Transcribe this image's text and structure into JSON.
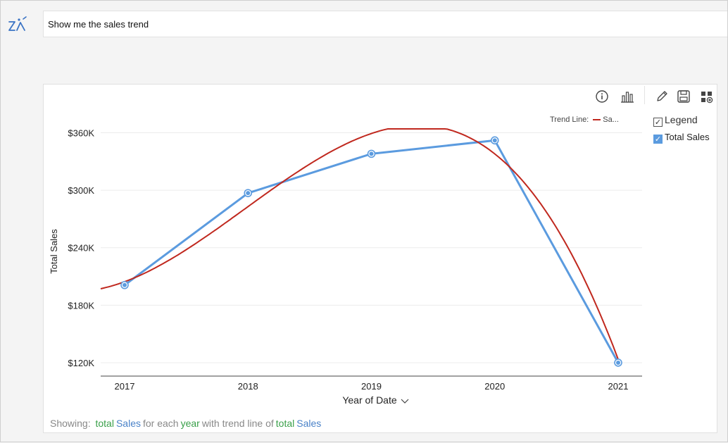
{
  "query": {
    "text": "Show me the sales trend"
  },
  "toolbar": {
    "icons": [
      "info-icon",
      "chart-type-icon",
      "edit-icon",
      "save-icon",
      "add-to-dashboard-icon"
    ]
  },
  "legend": {
    "trend_line_label": "Trend Line:",
    "trend_line_series": "Sa...",
    "legend_toggle_label": "Legend",
    "legend_checked": true,
    "series_label": "Total Sales",
    "series_checked": true
  },
  "footer": {
    "showing": "Showing:",
    "w1": "total",
    "w2": "Sales",
    "w3": "for each",
    "w4": "year",
    "w5": "with trend line of",
    "w6": "total",
    "w7": "Sales"
  },
  "colors": {
    "series": "#5b9bdf",
    "trend": "#c0281e",
    "keyword_green": "#3aa04a",
    "keyword_blue": "#4a82c8"
  },
  "chart_data": {
    "type": "line",
    "categories": [
      "2017",
      "2018",
      "2019",
      "2020",
      "2021"
    ],
    "series": [
      {
        "name": "Total Sales",
        "values": [
          201000,
          297000,
          338000,
          352000,
          120000
        ]
      }
    ],
    "trend_line": {
      "name": "Sa...",
      "kind": "polynomial"
    },
    "xlabel": "Year of Date",
    "ylabel": "Total Sales",
    "yticks": [
      "$120K",
      "$180K",
      "$240K",
      "$300K",
      "$360K"
    ],
    "ylim": [
      106000,
      364000
    ],
    "grid": true
  }
}
